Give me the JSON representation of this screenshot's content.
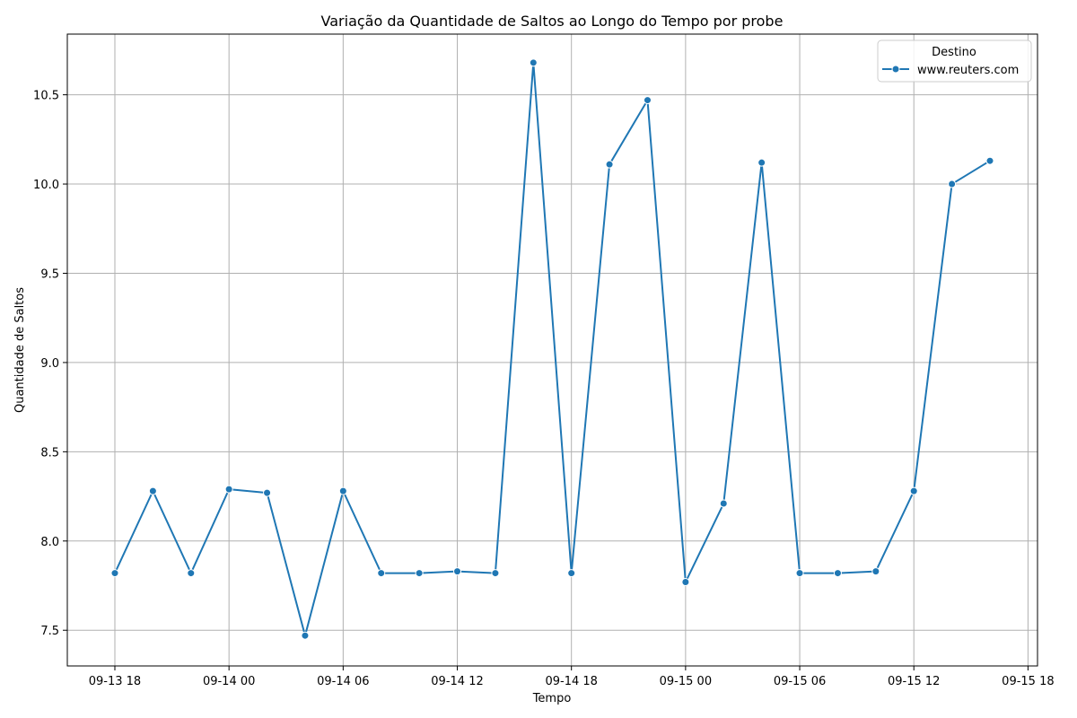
{
  "chart_data": {
    "type": "line",
    "title": "Variação da Quantidade de Saltos ao Longo do Tempo por probe",
    "xlabel": "Tempo",
    "ylabel": "Quantidade de Saltos",
    "x_tick_labels": [
      "09-13 18",
      "09-14 00",
      "09-14 06",
      "09-14 12",
      "09-14 18",
      "09-15 00",
      "09-15 06",
      "09-15 12",
      "09-15 18"
    ],
    "y_tick_labels": [
      "7.5",
      "8.0",
      "8.5",
      "9.0",
      "9.5",
      "10.0",
      "10.5"
    ],
    "xlim": [
      "2024-09-13T15:30",
      "2024-09-15T18:30"
    ],
    "ylim": [
      7.3,
      10.84
    ],
    "grid": true,
    "legend": {
      "title": "Destino",
      "position": "top-right"
    },
    "series": [
      {
        "name": "www.reuters.com",
        "color": "#1f77b4",
        "marker": "circle",
        "x": [
          "2024-09-13T18:00",
          "2024-09-13T20:00",
          "2024-09-13T22:00",
          "2024-09-14T00:00",
          "2024-09-14T02:00",
          "2024-09-14T04:00",
          "2024-09-14T06:00",
          "2024-09-14T08:00",
          "2024-09-14T10:00",
          "2024-09-14T12:00",
          "2024-09-14T14:00",
          "2024-09-14T16:00",
          "2024-09-14T18:00",
          "2024-09-14T20:00",
          "2024-09-14T22:00",
          "2024-09-15T00:00",
          "2024-09-15T02:00",
          "2024-09-15T04:00",
          "2024-09-15T06:00",
          "2024-09-15T08:00",
          "2024-09-15T10:00",
          "2024-09-15T12:00",
          "2024-09-15T14:00",
          "2024-09-15T16:00"
        ],
        "values": [
          7.82,
          8.28,
          7.82,
          8.29,
          8.27,
          7.47,
          8.28,
          7.82,
          7.82,
          7.83,
          7.82,
          10.68,
          7.82,
          10.11,
          10.47,
          7.77,
          8.21,
          10.12,
          7.82,
          7.82,
          7.83,
          8.28,
          10.0,
          10.13
        ]
      }
    ]
  }
}
